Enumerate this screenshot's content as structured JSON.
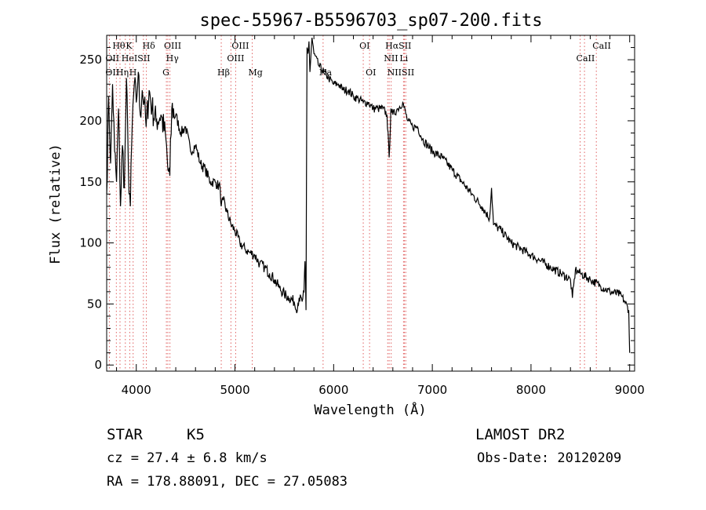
{
  "chart_data": {
    "type": "line",
    "title": "spec-55967-B5596703_sp07-200.fits",
    "xlabel": "Wavelength (Å)",
    "ylabel": "Flux (relative)",
    "xlim": [
      3700,
      9050
    ],
    "ylim": [
      -5,
      270
    ],
    "xticks": [
      4000,
      5000,
      6000,
      7000,
      8000,
      9000
    ],
    "yticks": [
      0,
      50,
      100,
      150,
      200,
      250
    ],
    "grid": false,
    "series": [
      {
        "color": "#000000",
        "x": [
          3700,
          3720,
          3740,
          3760,
          3780,
          3800,
          3820,
          3840,
          3860,
          3880,
          3900,
          3920,
          3940,
          3960,
          3980,
          4000,
          4020,
          4040,
          4060,
          4080,
          4100,
          4130,
          4160,
          4200,
          4250,
          4300,
          4320,
          4340,
          4360,
          4400,
          4450,
          4500,
          4550,
          4600,
          4650,
          4700,
          4750,
          4800,
          4850,
          4861,
          4880,
          4920,
          4960,
          5000,
          5050,
          5100,
          5150,
          5200,
          5250,
          5300,
          5350,
          5400,
          5450,
          5500,
          5550,
          5600,
          5620,
          5650,
          5680,
          5700,
          5710,
          5720,
          5730,
          5740,
          5750,
          5760,
          5780,
          5800,
          5850,
          5900,
          5950,
          6000,
          6050,
          6100,
          6150,
          6200,
          6250,
          6300,
          6350,
          6400,
          6450,
          6500,
          6540,
          6563,
          6580,
          6600,
          6650,
          6700,
          6750,
          6800,
          6850,
          6900,
          6950,
          7000,
          7100,
          7200,
          7300,
          7400,
          7500,
          7580,
          7600,
          7620,
          7700,
          7800,
          7900,
          8000,
          8100,
          8200,
          8300,
          8400,
          8420,
          8450,
          8500,
          8600,
          8700,
          8800,
          8900,
          8950,
          8990,
          9000
        ],
        "y": [
          140,
          220,
          165,
          230,
          175,
          150,
          210,
          130,
          180,
          145,
          235,
          160,
          130,
          200,
          230,
          215,
          240,
          205,
          225,
          215,
          195,
          225,
          210,
          200,
          205,
          185,
          160,
          155,
          210,
          205,
          190,
          195,
          175,
          180,
          165,
          160,
          150,
          150,
          145,
          130,
          135,
          125,
          115,
          110,
          100,
          95,
          92,
          90,
          83,
          80,
          75,
          70,
          63,
          58,
          55,
          52,
          45,
          55,
          52,
          60,
          85,
          45,
          260,
          255,
          265,
          240,
          268,
          255,
          245,
          240,
          235,
          230,
          230,
          225,
          225,
          220,
          218,
          215,
          215,
          210,
          210,
          210,
          205,
          170,
          210,
          205,
          210,
          215,
          200,
          195,
          195,
          185,
          180,
          175,
          170,
          160,
          150,
          140,
          130,
          120,
          145,
          115,
          110,
          100,
          95,
          90,
          85,
          80,
          75,
          70,
          55,
          78,
          75,
          70,
          65,
          60,
          58,
          52,
          45,
          10
        ]
      }
    ],
    "line_groups": [
      {
        "name": "OII",
        "wavelengths": [
          3727
        ]
      },
      {
        "name": "Hθ",
        "wavelengths": [
          3798
        ]
      },
      {
        "name": "Hη",
        "wavelengths": [
          3835
        ]
      },
      {
        "name": "HeI",
        "wavelengths": [
          3889
        ]
      },
      {
        "name": "K",
        "wavelengths": [
          3934
        ]
      },
      {
        "name": "H",
        "wavelengths": [
          3968
        ]
      },
      {
        "name": "SII",
        "wavelengths": [
          4072
        ]
      },
      {
        "name": "Hδ",
        "wavelengths": [
          4102
        ]
      },
      {
        "name": "OIII",
        "wavelengths": [
          4320
        ]
      },
      {
        "name": "Hγ",
        "wavelengths": [
          4341
        ]
      },
      {
        "name": "G",
        "wavelengths": [
          4305
        ]
      },
      {
        "name": "Hβ",
        "wavelengths": [
          4861
        ]
      },
      {
        "name": "OIII",
        "wavelengths": [
          4959,
          5007
        ]
      },
      {
        "name": "Mg",
        "wavelengths": [
          5175
        ]
      },
      {
        "name": "Na",
        "wavelengths": [
          5893
        ]
      },
      {
        "name": "OI",
        "wavelengths": [
          6300,
          6364
        ]
      },
      {
        "name": "NII",
        "wavelengths": [
          6548,
          6583
        ]
      },
      {
        "name": "Hα",
        "wavelengths": [
          6563
        ]
      },
      {
        "name": "SII",
        "wavelengths": [
          6717,
          6731
        ]
      },
      {
        "name": "Li",
        "wavelengths": [
          6708
        ]
      },
      {
        "name": "CaII",
        "wavelengths": [
          8498,
          8542,
          8662
        ]
      }
    ],
    "line_labels": [
      {
        "text": "Hθ",
        "wl": 3798,
        "row": 1
      },
      {
        "text": "K",
        "wl": 3934,
        "row": 1
      },
      {
        "text": "Hδ",
        "wl": 4102,
        "row": 1
      },
      {
        "text": "OIII",
        "wl": 4320,
        "row": 1
      },
      {
        "text": "OIII",
        "wl": 5007,
        "row": 1
      },
      {
        "text": "OI",
        "wl": 6300,
        "row": 1
      },
      {
        "text": "HαSII",
        "wl": 6563,
        "row": 1
      },
      {
        "text": "CaII",
        "wl": 8662,
        "row": 1
      },
      {
        "text": "OII",
        "wl": 3727,
        "row": 2
      },
      {
        "text": "HeISII",
        "wl": 3889,
        "row": 2
      },
      {
        "text": "Hγ",
        "wl": 4341,
        "row": 2
      },
      {
        "text": "OIII",
        "wl": 4959,
        "row": 2
      },
      {
        "text": "NII",
        "wl": 6548,
        "row": 2
      },
      {
        "text": "Li",
        "wl": 6708,
        "row": 2
      },
      {
        "text": "CaII",
        "wl": 8498,
        "row": 2
      },
      {
        "text": "OII",
        "wl": 3727,
        "row": 3
      },
      {
        "text": "Hη",
        "wl": 3835,
        "row": 3
      },
      {
        "text": "H",
        "wl": 3968,
        "row": 3
      },
      {
        "text": "G",
        "wl": 4305,
        "row": 3
      },
      {
        "text": "Hβ",
        "wl": 4861,
        "row": 3
      },
      {
        "text": "Mg",
        "wl": 5175,
        "row": 3
      },
      {
        "text": "Na",
        "wl": 5893,
        "row": 3
      },
      {
        "text": "OI",
        "wl": 6364,
        "row": 3
      },
      {
        "text": "NIISII",
        "wl": 6583,
        "row": 3
      }
    ],
    "line_marker_color": "#e06060"
  },
  "info": {
    "object_class": "STAR",
    "subclass": "K5",
    "survey": "LAMOST DR2",
    "redshift": "cz = 27.4 ± 6.8 km/s",
    "obs_date": "Obs-Date: 20120209",
    "coords": "RA = 178.88091, DEC =  27.05083"
  }
}
